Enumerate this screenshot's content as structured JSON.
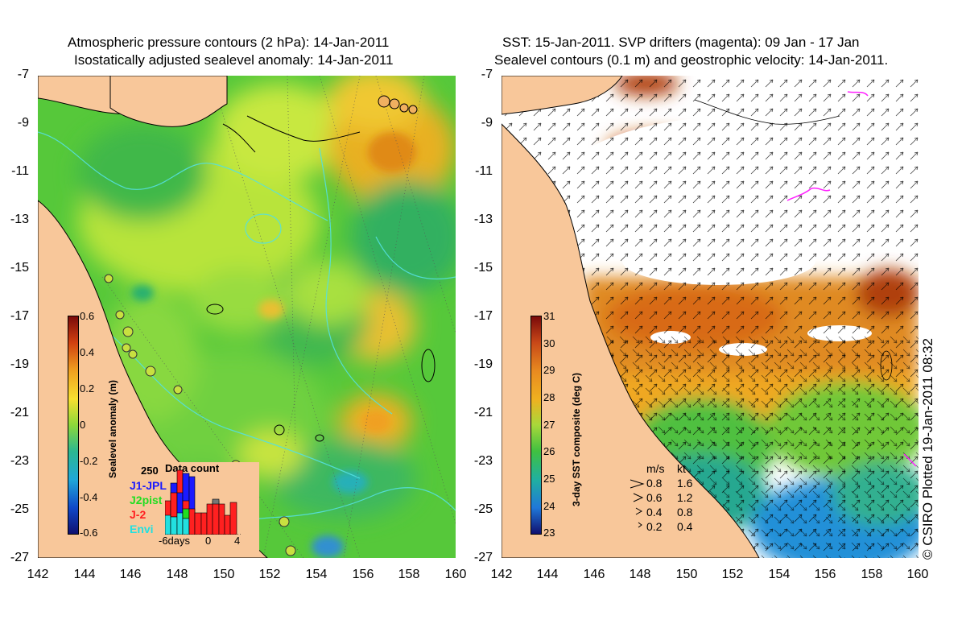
{
  "left_panel": {
    "title_line1": "Atmospheric pressure contours (2 hPa): 14-Jan-2011",
    "title_line2": "Isostatically adjusted sealevel anomaly: 14-Jan-2011",
    "colorbar": {
      "label": "Sealevel anomaly (m)",
      "ticks": [
        "0.6",
        "0.4",
        "0.2",
        "0",
        "-0.2",
        "-0.4",
        "-0.6"
      ],
      "range": [
        -0.6,
        0.6
      ]
    },
    "data_count": {
      "title": "Data count",
      "max_label": "250",
      "satellites": [
        {
          "name": "J1-JPL",
          "color": "#1a1aff"
        },
        {
          "name": "J2pist",
          "color": "#22dd22"
        },
        {
          "name": "J-2",
          "color": "#ff2020"
        },
        {
          "name": "Envi",
          "color": "#22e0e0"
        }
      ],
      "x_labels": [
        "-6days",
        "0",
        "4"
      ]
    }
  },
  "right_panel": {
    "title_line1": "SST: 15-Jan-2011. SVP drifters (magenta): 09 Jan - 17 Jan",
    "title_line2": "Sealevel contours (0.1 m) and geostrophic velocity: 14-Jan-2011.",
    "colorbar": {
      "label": "3-day SST composite (deg C)",
      "ticks": [
        "31",
        "30",
        "29",
        "28",
        "27",
        "26",
        "25",
        "24",
        "23"
      ],
      "range": [
        23,
        31
      ]
    },
    "velocity_legend": {
      "header_ms": "m/s",
      "header_kt": "kt",
      "rows": [
        {
          "ms": "0.8",
          "kt": "1.6"
        },
        {
          "ms": "0.6",
          "kt": "1.2"
        },
        {
          "ms": "0.4",
          "kt": "0.8"
        },
        {
          "ms": "0.2",
          "kt": "0.4"
        }
      ]
    }
  },
  "axes": {
    "y_ticks": [
      "-7",
      "-9",
      "-11",
      "-13",
      "-15",
      "-17",
      "-19",
      "-21",
      "-23",
      "-25",
      "-27"
    ],
    "x_ticks": [
      "142",
      "144",
      "146",
      "148",
      "150",
      "152",
      "154",
      "156",
      "158",
      "160"
    ]
  },
  "credit": "© CSIRO Plotted 19-Jan-2011 08:32",
  "colors": {
    "land": "#f8c79a",
    "ocean_mid": "#6cd23a",
    "contour": "#55e0e0"
  }
}
